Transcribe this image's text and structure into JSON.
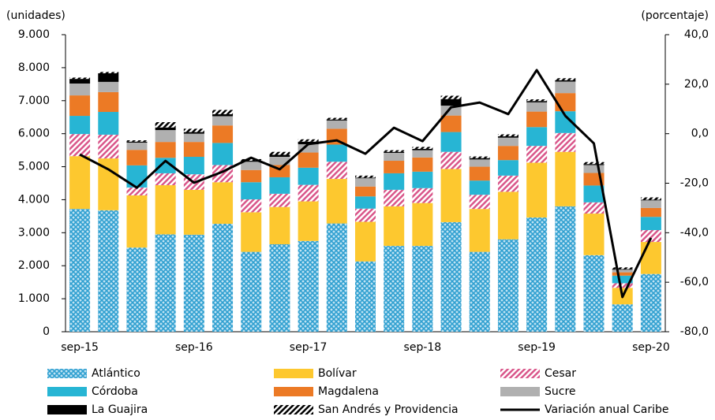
{
  "chart_data": {
    "type": "bar",
    "y_axis_label": "(unidades)",
    "y2_axis_label": "(porcentaje)",
    "categories": [
      "sep-15",
      null,
      null,
      null,
      "sep-16",
      null,
      null,
      null,
      "sep-17",
      null,
      null,
      null,
      "sep-18",
      null,
      null,
      null,
      "sep-19",
      null,
      null,
      null,
      "sep-20"
    ],
    "ylim": [
      0,
      9000
    ],
    "yticks": [
      0,
      {
        "value": 1000,
        "label": "1.000"
      },
      {
        "value": 2000,
        "label": "2.000"
      },
      {
        "value": 3000,
        "label": "3.000"
      },
      {
        "value": 4000,
        "label": "4.000"
      },
      {
        "value": 5000,
        "label": "5.000"
      },
      {
        "value": 6000,
        "label": "6.000"
      },
      {
        "value": 7000,
        "label": "7.000"
      },
      {
        "value": 8000,
        "label": "8.000"
      },
      {
        "value": 9000,
        "label": "9.000"
      }
    ],
    "y2lim": [
      -80,
      40
    ],
    "y2ticks": [
      {
        "value": -80,
        "label": "-80,0"
      },
      {
        "value": -60,
        "label": "-60,0"
      },
      {
        "value": -40,
        "label": "-40,0"
      },
      {
        "value": -20,
        "label": "-20,0"
      },
      {
        "value": 0,
        "label": "0,0"
      },
      {
        "value": 20,
        "label": "20,0"
      },
      {
        "value": 40,
        "label": "40,0"
      }
    ],
    "stacked": true,
    "series": [
      {
        "name": "Atlántico",
        "color": "#2e9fd0",
        "pattern": "crosshatch",
        "values": [
          3720,
          3680,
          2550,
          2950,
          2940,
          3270,
          2420,
          2650,
          2750,
          3280,
          2130,
          2600,
          2600,
          3320,
          2420,
          2800,
          3460,
          3800,
          2320,
          830,
          1750
        ]
      },
      {
        "name": "Bolívar",
        "color": "#fdc82f",
        "values": [
          1600,
          1570,
          1580,
          1490,
          1360,
          1260,
          1200,
          1130,
          1200,
          1350,
          1200,
          1200,
          1300,
          1610,
          1300,
          1440,
          1660,
          1650,
          1260,
          500,
          970
        ]
      },
      {
        "name": "Cesar",
        "color": "#d9568a",
        "pattern": "stripes",
        "values": [
          670,
          720,
          240,
          360,
          470,
          520,
          390,
          400,
          500,
          520,
          400,
          500,
          450,
          520,
          430,
          490,
          510,
          570,
          340,
          140,
          360
        ]
      },
      {
        "name": "Córdoba",
        "color": "#27b5d4",
        "values": [
          550,
          690,
          670,
          470,
          530,
          670,
          520,
          500,
          520,
          520,
          370,
          500,
          500,
          600,
          430,
          470,
          570,
          660,
          510,
          230,
          400
        ]
      },
      {
        "name": "Magdalena",
        "color": "#ec7a25",
        "values": [
          620,
          600,
          470,
          480,
          450,
          530,
          370,
          370,
          460,
          480,
          300,
          380,
          430,
          500,
          420,
          430,
          470,
          550,
          380,
          100,
          270
        ]
      },
      {
        "name": "Sucre",
        "color": "#b0b0b0",
        "values": [
          360,
          310,
          220,
          360,
          250,
          280,
          250,
          250,
          250,
          250,
          250,
          240,
          220,
          300,
          220,
          250,
          280,
          350,
          240,
          80,
          230
        ]
      },
      {
        "name": "La Guajira",
        "color": "#000000",
        "values": [
          140,
          260,
          30,
          80,
          50,
          60,
          30,
          60,
          80,
          30,
          20,
          30,
          40,
          200,
          40,
          40,
          40,
          40,
          30,
          20,
          20
        ]
      },
      {
        "name": "San Andrés y Providencia",
        "color": "#000000",
        "pattern": "stripes",
        "values": [
          40,
          40,
          40,
          160,
          100,
          130,
          50,
          90,
          70,
          50,
          60,
          50,
          60,
          100,
          50,
          60,
          50,
          60,
          60,
          50,
          70
        ]
      },
      {
        "name": "Variación anual Caribe",
        "color": "#000000",
        "type": "line",
        "axis": "y2",
        "values": [
          -8.4,
          -14.4,
          -21.8,
          -11,
          -19.8,
          -15.4,
          -9.7,
          -14.4,
          -4.2,
          -2.7,
          -8.1,
          2.4,
          -3,
          10.7,
          12.6,
          7.9,
          25.7,
          7.2,
          -3.9,
          -66,
          -42.1
        ]
      }
    ]
  }
}
